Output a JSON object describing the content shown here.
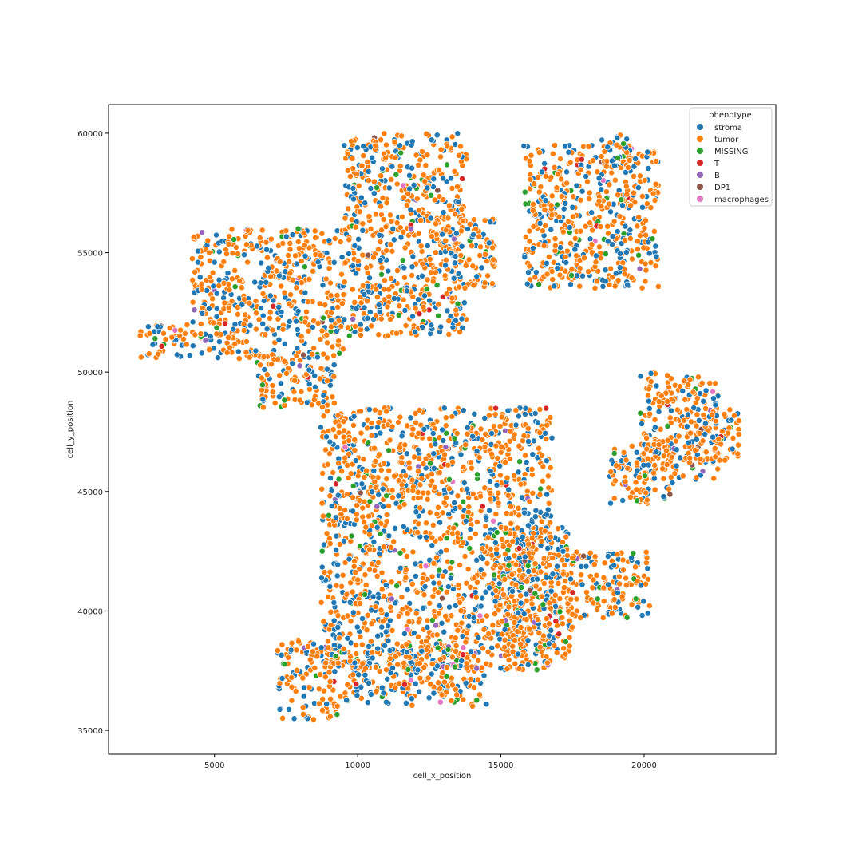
{
  "chart_data": {
    "type": "scatter",
    "title": "",
    "xlabel": "cell_x_position",
    "ylabel": "cell_y_position",
    "xlim": [
      1300,
      24600
    ],
    "ylim": [
      34000,
      61200
    ],
    "xticks": [
      5000,
      10000,
      15000,
      20000
    ],
    "yticks": [
      35000,
      40000,
      45000,
      50000,
      55000,
      60000
    ],
    "xtick_labels": [
      "5000",
      "10000",
      "15000",
      "20000"
    ],
    "ytick_labels": [
      "35000",
      "40000",
      "45000",
      "50000",
      "55000",
      "60000"
    ],
    "grid": false,
    "legend": {
      "title": "phenotype",
      "position": "top-right",
      "entries": [
        {
          "name": "stroma",
          "color": "#1f77b4"
        },
        {
          "name": "tumor",
          "color": "#ff7f0e"
        },
        {
          "name": "MISSING",
          "color": "#2ca02c"
        },
        {
          "name": "T",
          "color": "#d62728"
        },
        {
          "name": "B",
          "color": "#9467bd"
        },
        {
          "name": "DP1",
          "color": "#8c564b"
        },
        {
          "name": "macrophages",
          "color": "#e377c2"
        }
      ]
    },
    "regions": [
      {
        "xmin": 2400,
        "xmax": 4200,
        "ymin": 50600,
        "ymax": 52000
      },
      {
        "xmin": 4200,
        "xmax": 9500,
        "ymin": 50500,
        "ymax": 56000
      },
      {
        "xmin": 9500,
        "xmax": 13800,
        "ymin": 51500,
        "ymax": 60000
      },
      {
        "xmin": 13000,
        "xmax": 14800,
        "ymin": 53500,
        "ymax": 56500
      },
      {
        "xmin": 15800,
        "xmax": 20500,
        "ymin": 53500,
        "ymax": 59500
      },
      {
        "xmin": 18500,
        "xmax": 19500,
        "ymin": 58500,
        "ymax": 60000
      },
      {
        "xmin": 6500,
        "xmax": 9200,
        "ymin": 48500,
        "ymax": 50500
      },
      {
        "xmin": 8700,
        "xmax": 16800,
        "ymin": 37500,
        "ymax": 48500
      },
      {
        "xmin": 14800,
        "xmax": 17500,
        "ymin": 38000,
        "ymax": 43500
      },
      {
        "xmin": 16500,
        "xmax": 20200,
        "ymin": 39700,
        "ymax": 42500
      },
      {
        "xmin": 19800,
        "xmax": 22600,
        "ymin": 45500,
        "ymax": 50000
      },
      {
        "xmin": 18800,
        "xmax": 21000,
        "ymin": 44500,
        "ymax": 47000
      },
      {
        "xmin": 21500,
        "xmax": 23400,
        "ymin": 46300,
        "ymax": 48500
      },
      {
        "xmin": 7200,
        "xmax": 9400,
        "ymin": 35400,
        "ymax": 38800
      },
      {
        "xmin": 9500,
        "xmax": 14500,
        "ymin": 36000,
        "ymax": 38500
      }
    ]
  }
}
